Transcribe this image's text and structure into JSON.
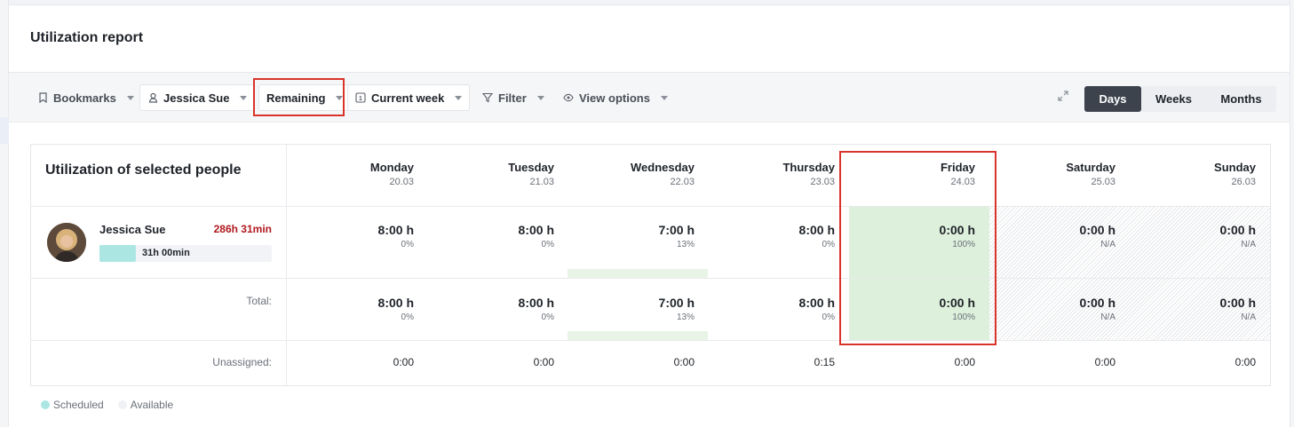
{
  "page": {
    "title": "Utilization report"
  },
  "toolbar": {
    "bookmarks": "Bookmarks",
    "person": "Jessica Sue",
    "remaining": "Remaining",
    "week": "Current week",
    "filter": "Filter",
    "view_options": "View options",
    "icons": [
      "bookmark-icon",
      "person-icon",
      "calendar-icon",
      "filter-icon",
      "eye-icon",
      "expand-icon"
    ]
  },
  "view_switch": {
    "days": "Days",
    "weeks": "Weeks",
    "months": "Months",
    "active": "Days"
  },
  "table": {
    "title": "Utilization of selected people",
    "days": [
      {
        "name": "Monday",
        "date": "20.03"
      },
      {
        "name": "Tuesday",
        "date": "21.03"
      },
      {
        "name": "Wednesday",
        "date": "22.03"
      },
      {
        "name": "Thursday",
        "date": "23.03"
      },
      {
        "name": "Friday",
        "date": "24.03"
      },
      {
        "name": "Saturday",
        "date": "25.03"
      },
      {
        "name": "Sunday",
        "date": "26.03"
      }
    ],
    "person": {
      "name": "Jessica Sue",
      "remaining": "286h 31min",
      "scheduled": "31h 00min",
      "scheduled_fraction": 0.21,
      "cells": [
        {
          "hours": "8:00 h",
          "pct": "0%"
        },
        {
          "hours": "8:00 h",
          "pct": "0%"
        },
        {
          "hours": "7:00 h",
          "pct": "13%"
        },
        {
          "hours": "8:00 h",
          "pct": "0%"
        },
        {
          "hours": "0:00 h",
          "pct": "100%"
        },
        {
          "hours": "0:00 h",
          "pct": "N/A"
        },
        {
          "hours": "0:00 h",
          "pct": "N/A"
        }
      ]
    },
    "total": {
      "label": "Total:",
      "cells": [
        {
          "hours": "8:00 h",
          "pct": "0%"
        },
        {
          "hours": "8:00 h",
          "pct": "0%"
        },
        {
          "hours": "7:00 h",
          "pct": "13%"
        },
        {
          "hours": "8:00 h",
          "pct": "0%"
        },
        {
          "hours": "0:00 h",
          "pct": "100%"
        },
        {
          "hours": "0:00 h",
          "pct": "N/A"
        },
        {
          "hours": "0:00 h",
          "pct": "N/A"
        }
      ]
    },
    "unassigned": {
      "label": "Unassigned:",
      "values": [
        "0:00",
        "0:00",
        "0:00",
        "0:15",
        "0:00",
        "0:00",
        "0:00"
      ]
    }
  },
  "legend": {
    "scheduled": "Scheduled",
    "available": "Available"
  },
  "colors": {
    "highlight": "#d9342b",
    "scheduled": "#abe6e3",
    "available": "#f0f1f5",
    "utilized_bg": "#ddf0db",
    "remaining_text": "#b0191e",
    "active_tab": "#3d434c"
  }
}
